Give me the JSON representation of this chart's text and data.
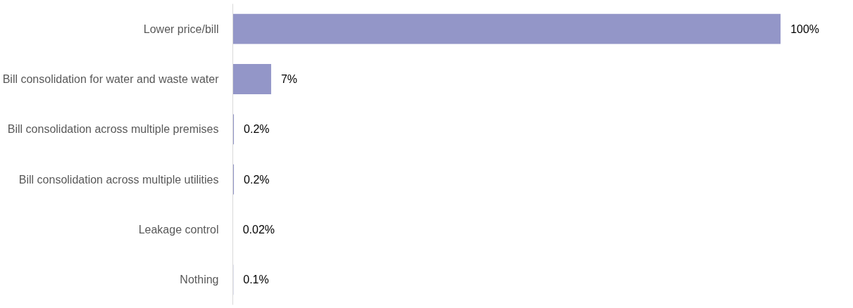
{
  "chart_data": {
    "type": "bar",
    "orientation": "horizontal",
    "categories": [
      "Lower price/bill",
      "Bill consolidation for water and waste water",
      "Bill consolidation across multiple premises",
      "Bill consolidation across multiple utilities",
      "Leakage control",
      "Nothing"
    ],
    "values": [
      100,
      7,
      0.2,
      0.2,
      0.02,
      0.1
    ],
    "value_labels": [
      "100%",
      "7%",
      "0.2%",
      "0.2%",
      "0.02%",
      "0.1%"
    ],
    "color": "#9396c8",
    "grid": false
  }
}
